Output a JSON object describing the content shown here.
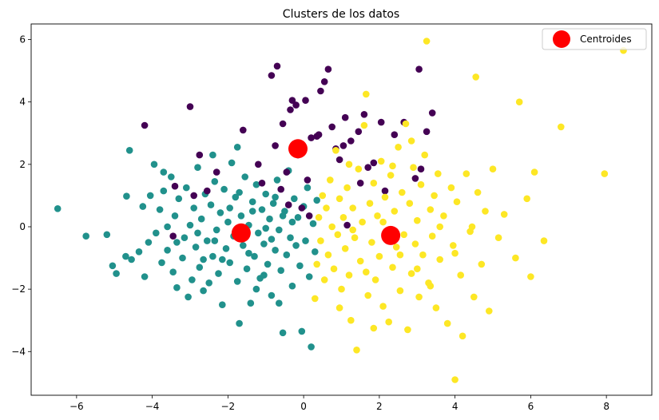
{
  "chart_data": {
    "type": "scatter",
    "title": "Clusters de los datos",
    "xlabel": "",
    "ylabel": "",
    "xlim": [
      -7.2,
      9.2
    ],
    "ylim": [
      -5.4,
      6.5
    ],
    "xticks": [
      -6,
      -4,
      -2,
      0,
      2,
      4,
      6,
      8
    ],
    "yticks": [
      -4,
      -2,
      0,
      2,
      4,
      6
    ],
    "grid": false,
    "legend": {
      "placement": "top-right",
      "entries": [
        "Centroides"
      ]
    },
    "colors": {
      "cluster_purple": "#440154",
      "cluster_teal": "#21918c",
      "cluster_yellow": "#fde725",
      "centroid": "#ff0000"
    },
    "centroids": [
      {
        "x": -1.65,
        "y": -0.2
      },
      {
        "x": -0.15,
        "y": 2.5
      },
      {
        "x": 2.3,
        "y": -0.28
      }
    ],
    "clusters": [
      {
        "color_key": "cluster_teal",
        "points": [
          [
            -6.5,
            0.58
          ],
          [
            -5.75,
            -0.3
          ],
          [
            -5.2,
            -0.25
          ],
          [
            -5.05,
            -1.25
          ],
          [
            -4.95,
            -1.5
          ],
          [
            -4.7,
            -0.95
          ],
          [
            -4.68,
            0.98
          ],
          [
            -4.6,
            2.45
          ],
          [
            -4.55,
            -1.05
          ],
          [
            -4.35,
            -0.8
          ],
          [
            -4.25,
            0.65
          ],
          [
            -4.2,
            -1.6
          ],
          [
            -4.1,
            -0.5
          ],
          [
            -4.05,
            1.0
          ],
          [
            -3.95,
            2.0
          ],
          [
            -3.9,
            -0.2
          ],
          [
            -3.8,
            0.55
          ],
          [
            -3.75,
            -1.15
          ],
          [
            -3.7,
            1.15
          ],
          [
            -3.6,
            -0.75
          ],
          [
            -3.6,
            0.0
          ],
          [
            -3.5,
            1.6
          ],
          [
            -3.45,
            -1.45
          ],
          [
            -3.4,
            0.35
          ],
          [
            -3.35,
            -1.95
          ],
          [
            -3.3,
            0.9
          ],
          [
            -3.2,
            -1.0
          ],
          [
            -3.15,
            -0.35
          ],
          [
            -3.1,
            1.25
          ],
          [
            -3.05,
            -2.25
          ],
          [
            -3.0,
            0.05
          ],
          [
            -2.95,
            -1.7
          ],
          [
            -2.9,
            0.6
          ],
          [
            -2.85,
            -0.65
          ],
          [
            -2.8,
            1.9
          ],
          [
            -2.75,
            -1.3
          ],
          [
            -2.7,
            0.25
          ],
          [
            -2.65,
            -2.05
          ],
          [
            -2.6,
            1.05
          ],
          [
            -2.55,
            -0.45
          ],
          [
            -2.5,
            -1.8
          ],
          [
            -2.45,
            0.7
          ],
          [
            -2.4,
            -0.95
          ],
          [
            -2.35,
            1.45
          ],
          [
            -2.3,
            -0.1
          ],
          [
            -2.25,
            -1.5
          ],
          [
            -2.2,
            0.45
          ],
          [
            -2.15,
            -2.5
          ],
          [
            -2.1,
            1.2
          ],
          [
            -2.05,
            -0.7
          ],
          [
            -2.0,
            0.15
          ],
          [
            -1.95,
            -1.15
          ],
          [
            -1.9,
            2.05
          ],
          [
            -1.85,
            -0.3
          ],
          [
            -1.8,
            0.95
          ],
          [
            -1.75,
            -1.75
          ],
          [
            -1.7,
            -3.1
          ],
          [
            -1.65,
            0.35
          ],
          [
            -1.6,
            -0.6
          ],
          [
            -1.55,
            1.6
          ],
          [
            -1.5,
            -1.35
          ],
          [
            -1.45,
            0.05
          ],
          [
            -1.4,
            -2.45
          ],
          [
            -1.35,
            0.8
          ],
          [
            -1.3,
            -0.95
          ],
          [
            -1.25,
            1.35
          ],
          [
            -1.2,
            -0.2
          ],
          [
            -1.15,
            -1.65
          ],
          [
            -1.1,
            0.55
          ],
          [
            -1.05,
            -0.55
          ],
          [
            -1.0,
            1.05
          ],
          [
            -0.95,
            -1.2
          ],
          [
            -0.9,
            0.25
          ],
          [
            -0.85,
            -2.2
          ],
          [
            -0.8,
            0.75
          ],
          [
            -0.75,
            -0.75
          ],
          [
            -0.7,
            1.5
          ],
          [
            -0.65,
            -0.1
          ],
          [
            -0.6,
            -1.4
          ],
          [
            -0.55,
            -3.4
          ],
          [
            -0.5,
            0.5
          ],
          [
            -0.45,
            -0.9
          ],
          [
            -0.4,
            1.8
          ],
          [
            -0.35,
            -0.35
          ],
          [
            -0.3,
            -1.9
          ],
          [
            -0.25,
            0.9
          ],
          [
            -0.2,
            -0.6
          ],
          [
            -0.15,
            0.3
          ],
          [
            -0.1,
            -1.25
          ],
          [
            -0.05,
            -3.35
          ],
          [
            0.0,
            0.65
          ],
          [
            0.05,
            -0.45
          ],
          [
            0.1,
            1.25
          ],
          [
            0.15,
            -1.6
          ],
          [
            0.2,
            -3.85
          ],
          [
            0.25,
            0.1
          ],
          [
            0.3,
            -0.8
          ],
          [
            0.35,
            0.85
          ],
          [
            -1.75,
            2.55
          ],
          [
            -2.4,
            2.3
          ],
          [
            -3.7,
            1.75
          ],
          [
            -2.65,
            -1.05
          ],
          [
            -1.25,
            -2.0
          ],
          [
            -0.65,
            -2.45
          ],
          [
            -1.95,
            0.6
          ],
          [
            -2.35,
            -0.45
          ],
          [
            -1.0,
            -0.05
          ],
          [
            -0.55,
            0.35
          ],
          [
            -1.45,
            -0.85
          ],
          [
            -2.8,
            -0.2
          ],
          [
            -3.35,
            -0.5
          ],
          [
            -2.15,
            -1.05
          ],
          [
            -1.7,
            1.1
          ],
          [
            -0.85,
            -0.4
          ],
          [
            -0.3,
            0.15
          ],
          [
            -1.35,
            0.5
          ],
          [
            -0.75,
            0.95
          ],
          [
            -1.05,
            -1.55
          ]
        ]
      },
      {
        "color_key": "cluster_purple",
        "points": [
          [
            -4.2,
            3.25
          ],
          [
            -3.45,
            -0.3
          ],
          [
            -3.4,
            1.3
          ],
          [
            -3.0,
            3.85
          ],
          [
            -2.9,
            1.0
          ],
          [
            -2.75,
            2.3
          ],
          [
            -2.55,
            1.15
          ],
          [
            -2.3,
            1.75
          ],
          [
            -1.6,
            3.1
          ],
          [
            -1.2,
            2.0
          ],
          [
            -1.1,
            1.4
          ],
          [
            -0.85,
            4.85
          ],
          [
            -0.7,
            5.15
          ],
          [
            -0.6,
            1.2
          ],
          [
            -0.55,
            3.3
          ],
          [
            -0.45,
            1.75
          ],
          [
            -0.4,
            0.7
          ],
          [
            -0.35,
            3.75
          ],
          [
            -0.3,
            4.05
          ],
          [
            -0.2,
            3.9
          ],
          [
            -0.15,
            2.3
          ],
          [
            -0.05,
            0.6
          ],
          [
            0.05,
            4.05
          ],
          [
            0.1,
            1.5
          ],
          [
            0.15,
            0.35
          ],
          [
            0.2,
            2.85
          ],
          [
            0.35,
            2.9
          ],
          [
            0.45,
            4.35
          ],
          [
            0.55,
            4.65
          ],
          [
            0.65,
            5.05
          ],
          [
            0.75,
            3.2
          ],
          [
            0.85,
            2.5
          ],
          [
            0.95,
            2.15
          ],
          [
            1.05,
            2.6
          ],
          [
            1.1,
            3.5
          ],
          [
            1.15,
            0.05
          ],
          [
            1.25,
            2.75
          ],
          [
            1.45,
            3.05
          ],
          [
            1.5,
            1.4
          ],
          [
            1.6,
            3.6
          ],
          [
            1.7,
            1.9
          ],
          [
            1.85,
            2.05
          ],
          [
            2.05,
            3.35
          ],
          [
            2.15,
            1.15
          ],
          [
            2.4,
            2.95
          ],
          [
            2.65,
            3.35
          ],
          [
            2.95,
            1.55
          ],
          [
            3.05,
            5.05
          ],
          [
            3.1,
            1.85
          ],
          [
            3.25,
            3.05
          ],
          [
            3.4,
            3.65
          ],
          [
            0.4,
            2.95
          ],
          [
            -0.75,
            2.6
          ]
        ]
      },
      {
        "color_key": "cluster_yellow",
        "points": [
          [
            0.3,
            -2.3
          ],
          [
            0.35,
            -1.2
          ],
          [
            0.4,
            0.3
          ],
          [
            0.45,
            -0.45
          ],
          [
            0.5,
            1.0
          ],
          [
            0.55,
            -1.7
          ],
          [
            0.6,
            0.6
          ],
          [
            0.65,
            -0.9
          ],
          [
            0.7,
            1.5
          ],
          [
            0.75,
            0.0
          ],
          [
            0.8,
            -1.35
          ],
          [
            0.85,
            2.45
          ],
          [
            0.9,
            -0.25
          ],
          [
            0.95,
            0.9
          ],
          [
            1.0,
            -2.0
          ],
          [
            1.05,
            0.3
          ],
          [
            1.1,
            -0.7
          ],
          [
            1.15,
            1.25
          ],
          [
            1.2,
            -1.55
          ],
          [
            1.25,
            -3.0
          ],
          [
            1.3,
            0.6
          ],
          [
            1.35,
            -0.35
          ],
          [
            1.4,
            -3.95
          ],
          [
            1.45,
            1.85
          ],
          [
            1.5,
            -1.1
          ],
          [
            1.55,
            0.15
          ],
          [
            1.6,
            3.25
          ],
          [
            1.65,
            4.25
          ],
          [
            1.7,
            -2.2
          ],
          [
            1.75,
            0.75
          ],
          [
            1.8,
            -0.5
          ],
          [
            1.85,
            1.4
          ],
          [
            1.9,
            -1.7
          ],
          [
            1.95,
            0.35
          ],
          [
            2.0,
            -0.95
          ],
          [
            2.05,
            2.1
          ],
          [
            2.1,
            -2.55
          ],
          [
            2.15,
            0.95
          ],
          [
            2.2,
            -0.15
          ],
          [
            2.25,
            -3.05
          ],
          [
            2.3,
            1.65
          ],
          [
            2.35,
            -1.3
          ],
          [
            2.4,
            0.5
          ],
          [
            2.45,
            -0.65
          ],
          [
            2.5,
            2.55
          ],
          [
            2.55,
            -2.05
          ],
          [
            2.6,
            1.1
          ],
          [
            2.65,
            -0.25
          ],
          [
            2.7,
            3.3
          ],
          [
            2.75,
            -3.3
          ],
          [
            2.8,
            0.75
          ],
          [
            2.85,
            -1.5
          ],
          [
            2.9,
            1.9
          ],
          [
            2.95,
            -0.55
          ],
          [
            3.0,
            0.2
          ],
          [
            3.05,
            -2.25
          ],
          [
            3.1,
            1.35
          ],
          [
            3.15,
            -0.9
          ],
          [
            3.2,
            2.3
          ],
          [
            3.25,
            5.95
          ],
          [
            3.3,
            -1.8
          ],
          [
            3.35,
            0.55
          ],
          [
            3.4,
            -0.3
          ],
          [
            3.45,
            1.0
          ],
          [
            3.5,
            -2.6
          ],
          [
            3.55,
            1.7
          ],
          [
            3.6,
            -1.05
          ],
          [
            3.7,
            0.35
          ],
          [
            3.8,
            -3.1
          ],
          [
            3.9,
            1.25
          ],
          [
            3.95,
            -0.6
          ],
          [
            4.0,
            -4.9
          ],
          [
            4.05,
            0.8
          ],
          [
            4.15,
            -1.55
          ],
          [
            4.2,
            -3.5
          ],
          [
            4.3,
            1.7
          ],
          [
            4.4,
            -0.15
          ],
          [
            4.5,
            -2.25
          ],
          [
            4.55,
            4.8
          ],
          [
            4.6,
            1.1
          ],
          [
            4.7,
            -1.2
          ],
          [
            4.8,
            0.5
          ],
          [
            4.9,
            -2.7
          ],
          [
            5.0,
            1.85
          ],
          [
            5.15,
            -0.35
          ],
          [
            5.3,
            0.4
          ],
          [
            5.6,
            -1.0
          ],
          [
            5.7,
            4.0
          ],
          [
            5.9,
            0.9
          ],
          [
            6.0,
            -1.6
          ],
          [
            6.1,
            1.75
          ],
          [
            6.35,
            -0.45
          ],
          [
            6.8,
            3.2
          ],
          [
            7.95,
            1.7
          ],
          [
            8.45,
            5.65
          ],
          [
            2.55,
            -0.9
          ],
          [
            1.3,
            -0.1
          ],
          [
            2.1,
            0.15
          ],
          [
            1.65,
            -1.45
          ],
          [
            3.0,
            -1.35
          ],
          [
            2.35,
            1.95
          ],
          [
            0.95,
            -2.6
          ],
          [
            1.2,
            2.0
          ],
          [
            3.6,
            0.0
          ],
          [
            4.45,
            0.0
          ],
          [
            2.85,
            2.75
          ],
          [
            1.85,
            -3.25
          ],
          [
            3.35,
            -1.9
          ],
          [
            4.0,
            -0.85
          ]
        ]
      }
    ]
  }
}
